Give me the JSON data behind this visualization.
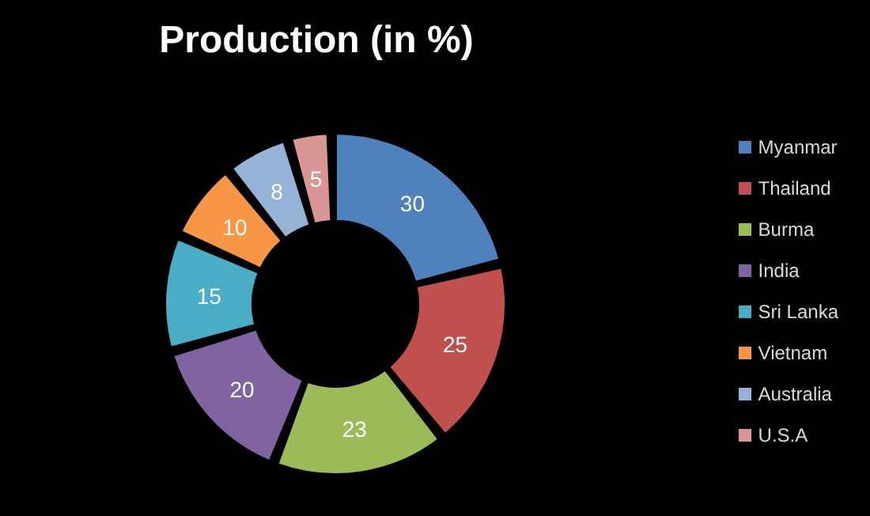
{
  "chart_data": {
    "type": "donut",
    "title": "Production (in %)",
    "categories": [
      "Myanmar",
      "Thailand",
      "Burma",
      "India",
      "Sri Lanka",
      "Vietnam",
      "Australia",
      "U.S.A"
    ],
    "values": [
      30,
      25,
      23,
      20,
      15,
      10,
      8,
      5
    ],
    "colors": [
      "#4f81bd",
      "#c0504d",
      "#9bbb59",
      "#8064a2",
      "#4bacc6",
      "#f79646",
      "#95b3d7",
      "#d99694"
    ],
    "data_labels": true,
    "legend": "right"
  }
}
